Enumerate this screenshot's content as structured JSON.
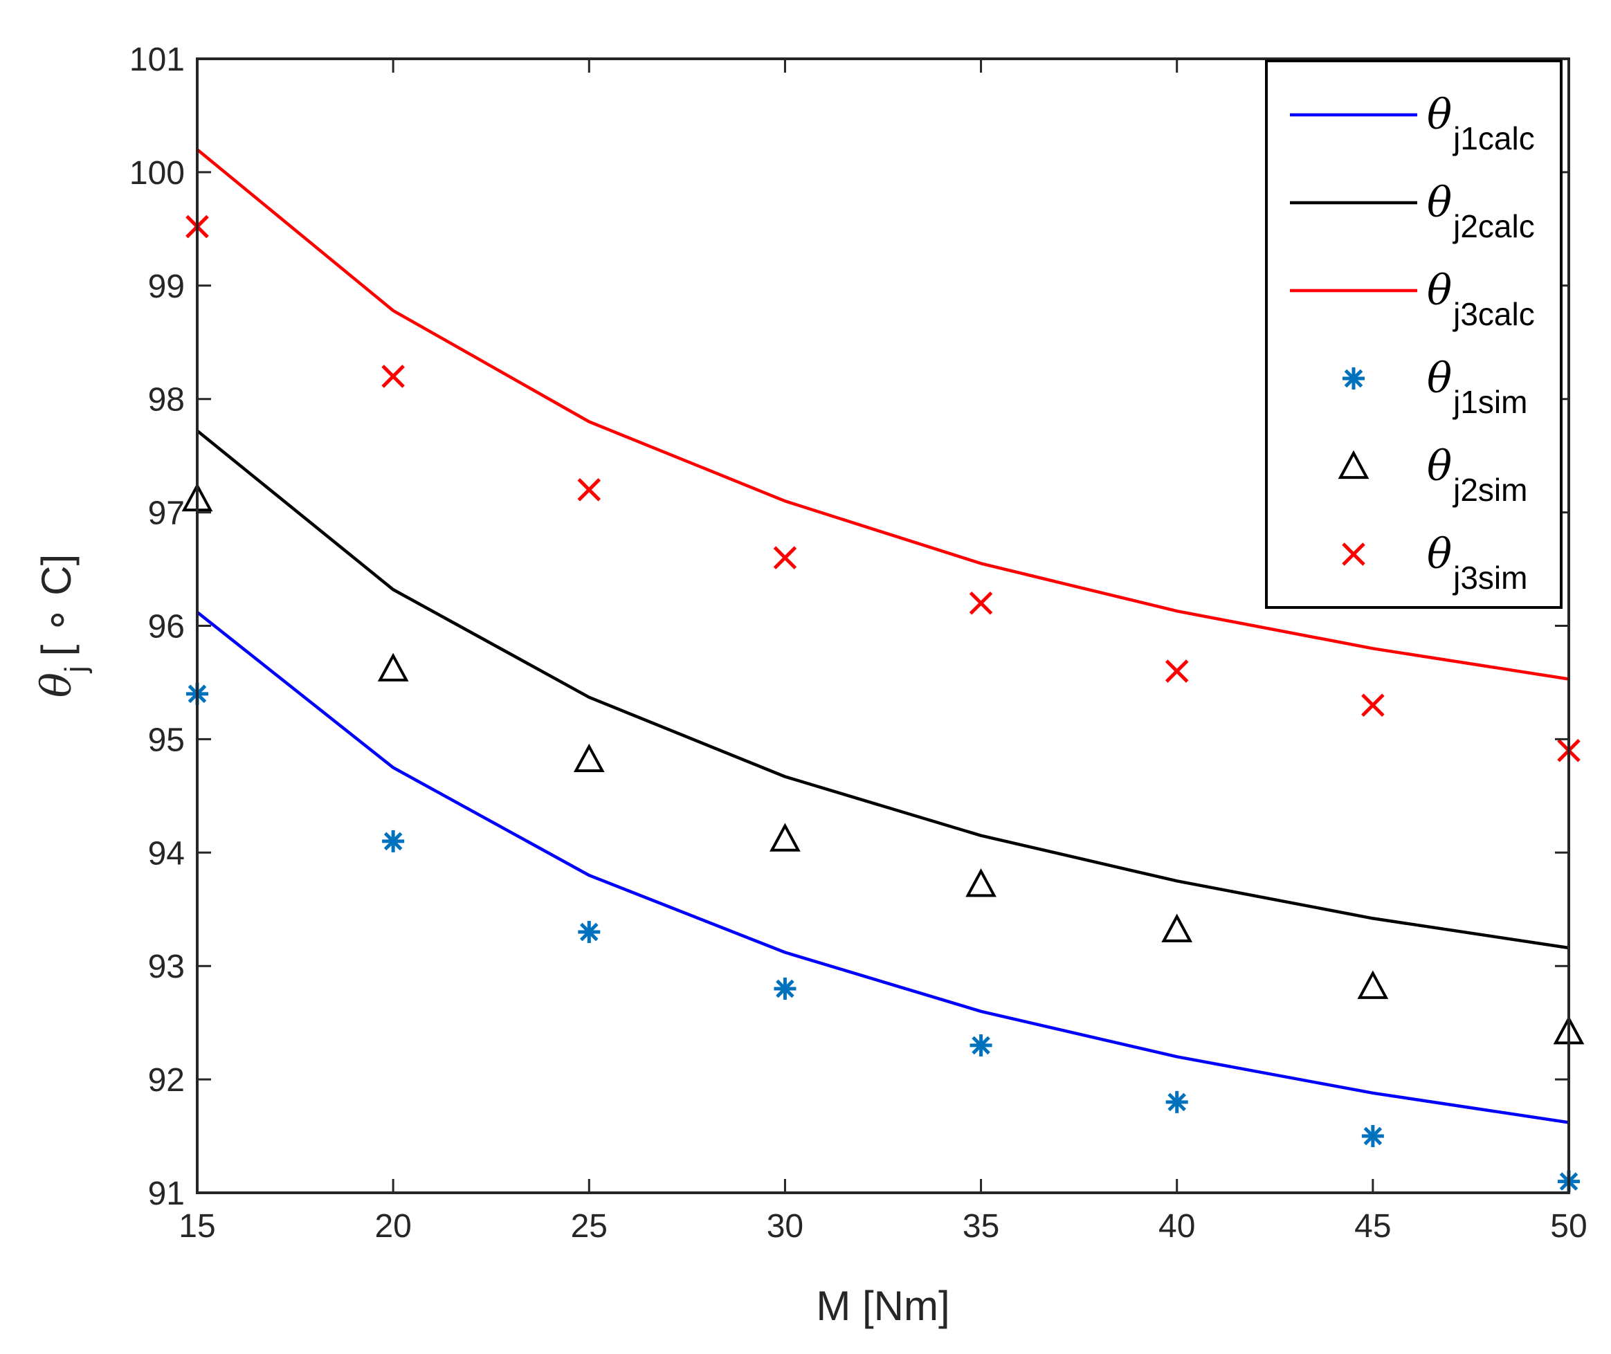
{
  "chart_data": {
    "type": "line",
    "title": "",
    "xlabel": "M [Nm]",
    "ylabel": {
      "symbol": "θ",
      "subscript": "j",
      "unit": "[ ∘ C]"
    },
    "xlim": [
      15,
      50
    ],
    "ylim": [
      91,
      101
    ],
    "xticks": [
      "15",
      "20",
      "25",
      "30",
      "35",
      "40",
      "45",
      "50"
    ],
    "yticks": [
      "91",
      "92",
      "93",
      "94",
      "95",
      "96",
      "97",
      "98",
      "99",
      "100",
      "101"
    ],
    "x": [
      15,
      20,
      25,
      30,
      35,
      40,
      45,
      50
    ],
    "grid": false,
    "legend_position": "top-right",
    "series": [
      {
        "name": "θj1calc",
        "symbol": "θ",
        "sub": "j1calc",
        "kind": "line",
        "color": "#0000ff",
        "values": [
          96.12,
          94.75,
          93.8,
          93.12,
          92.6,
          92.2,
          91.88,
          91.62
        ]
      },
      {
        "name": "θj2calc",
        "symbol": "θ",
        "sub": "j2calc",
        "kind": "line",
        "color": "#000000",
        "values": [
          97.72,
          96.32,
          95.37,
          94.67,
          94.15,
          93.75,
          93.42,
          93.16
        ]
      },
      {
        "name": "θj3calc",
        "symbol": "θ",
        "sub": "j3calc",
        "kind": "line",
        "color": "#ff0000",
        "values": [
          100.2,
          98.78,
          97.8,
          97.1,
          96.55,
          96.13,
          95.8,
          95.53
        ]
      },
      {
        "name": "θj1sim",
        "symbol": "θ",
        "sub": "j1sim",
        "kind": "marker",
        "marker": "asterisk",
        "color": "#0072bd",
        "values": [
          95.4,
          94.1,
          93.3,
          92.8,
          92.3,
          91.8,
          91.5,
          91.1
        ]
      },
      {
        "name": "θj2sim",
        "symbol": "θ",
        "sub": "j2sim",
        "kind": "marker",
        "marker": "triangle",
        "color": "#000000",
        "values": [
          97.12,
          95.62,
          94.82,
          94.12,
          93.72,
          93.32,
          92.82,
          92.42
        ]
      },
      {
        "name": "θj3sim",
        "symbol": "θ",
        "sub": "j3sim",
        "kind": "marker",
        "marker": "cross",
        "color": "#ff0000",
        "values": [
          99.52,
          98.2,
          97.2,
          96.6,
          96.2,
          95.6,
          95.3,
          94.9
        ]
      }
    ]
  }
}
